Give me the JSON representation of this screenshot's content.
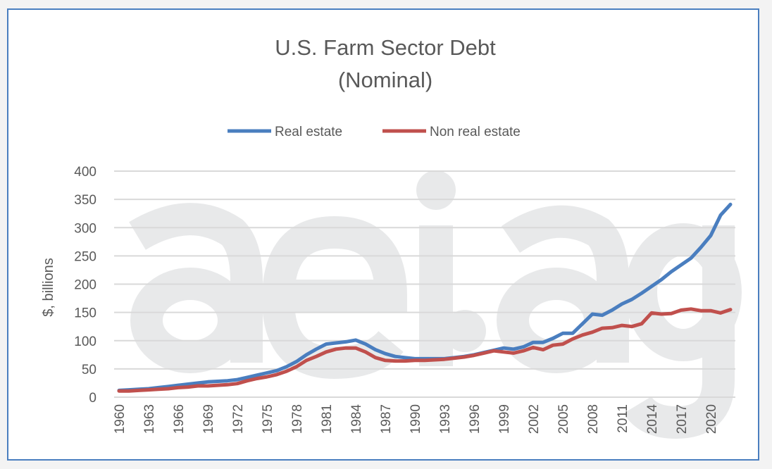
{
  "chart_data": {
    "type": "line",
    "title": "U.S. Farm Sector Debt",
    "subtitle": "(Nominal)",
    "xlabel": "",
    "ylabel": "$, billions",
    "watermark": "aei.ag",
    "ylim": [
      0,
      400
    ],
    "yticks": [
      0,
      50,
      100,
      150,
      200,
      250,
      300,
      350,
      400
    ],
    "x": [
      1960,
      1961,
      1962,
      1963,
      1964,
      1965,
      1966,
      1967,
      1968,
      1969,
      1970,
      1971,
      1972,
      1973,
      1974,
      1975,
      1976,
      1977,
      1978,
      1979,
      1980,
      1981,
      1982,
      1983,
      1984,
      1985,
      1986,
      1987,
      1988,
      1989,
      1990,
      1991,
      1992,
      1993,
      1994,
      1995,
      1996,
      1997,
      1998,
      1999,
      2000,
      2001,
      2002,
      2003,
      2004,
      2005,
      2006,
      2007,
      2008,
      2009,
      2010,
      2011,
      2012,
      2013,
      2014,
      2015,
      2016,
      2017,
      2018,
      2019,
      2020,
      2021,
      2022
    ],
    "xtick_labels": [
      "1960",
      "1963",
      "1966",
      "1969",
      "1972",
      "1975",
      "1978",
      "1981",
      "1984",
      "1987",
      "1990",
      "1993",
      "1996",
      "1999",
      "2002",
      "2005",
      "2008",
      "2011",
      "2014",
      "2017",
      "2020"
    ],
    "grid": true,
    "legend_placement": "top",
    "series": [
      {
        "name": "Real estate",
        "color": "#4a7ebf",
        "values": [
          12,
          13,
          14,
          15,
          17,
          19,
          21,
          23,
          25,
          27,
          28,
          29,
          31,
          35,
          39,
          43,
          47,
          54,
          63,
          75,
          85,
          94,
          96,
          98,
          101,
          94,
          84,
          77,
          72,
          70,
          68,
          68,
          68,
          68,
          70,
          72,
          75,
          79,
          83,
          87,
          85,
          89,
          97,
          97,
          104,
          113,
          113,
          130,
          147,
          145,
          154,
          165,
          173,
          184,
          196,
          208,
          222,
          234,
          246,
          265,
          286,
          322,
          341
        ]
      },
      {
        "name": "Non real estate",
        "color": "#c0504d",
        "values": [
          11,
          11,
          12,
          13,
          14,
          15,
          17,
          18,
          20,
          20,
          21,
          22,
          24,
          29,
          33,
          36,
          40,
          46,
          54,
          65,
          72,
          80,
          85,
          87,
          87,
          80,
          70,
          65,
          64,
          64,
          65,
          65,
          66,
          67,
          69,
          71,
          74,
          78,
          82,
          80,
          78,
          82,
          88,
          84,
          92,
          94,
          103,
          110,
          115,
          122,
          123,
          127,
          125,
          130,
          149,
          147,
          148,
          154,
          156,
          153,
          153,
          149,
          155
        ]
      }
    ]
  }
}
